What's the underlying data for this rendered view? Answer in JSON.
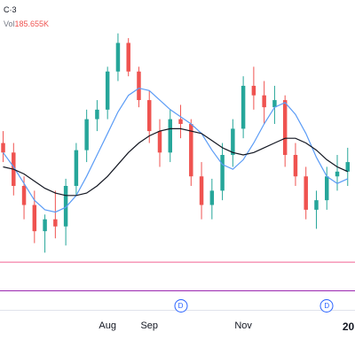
{
  "legend": {
    "symbol_line": "C·3",
    "volume_label": "Vol",
    "volume_value": "185.655K"
  },
  "colors": {
    "up": "#26a69a",
    "down": "#ef5350",
    "ma_fast": "#5b9cf6",
    "ma_slow": "#131722",
    "pink_line": "#f06292",
    "purple_line": "#9c27b0",
    "marker": "#2962ff"
  },
  "x_axis": {
    "ticks": [
      {
        "label": "Aug",
        "week": 10
      },
      {
        "label": "Sep",
        "week": 14
      },
      {
        "label": "Nov",
        "week": 23
      },
      {
        "label": "20",
        "week": 32.5,
        "bold": true
      }
    ]
  },
  "dividend_markers": [
    {
      "label": "D",
      "week": 17
    },
    {
      "label": "D",
      "week": 31
    }
  ],
  "chart_data": {
    "type": "candlestick",
    "x_unit": "week index",
    "y_unit": "price (no axis shown)",
    "xlim": [
      -0.3,
      33.7
    ],
    "ylim": [
      80,
      210
    ],
    "candles": [
      {
        "t": 0,
        "o": 150,
        "h": 155,
        "l": 142,
        "c": 146
      },
      {
        "t": 1,
        "o": 146,
        "h": 150,
        "l": 128,
        "c": 132
      },
      {
        "t": 2,
        "o": 132,
        "h": 136,
        "l": 118,
        "c": 124
      },
      {
        "t": 3,
        "o": 124,
        "h": 130,
        "l": 108,
        "c": 113
      },
      {
        "t": 4,
        "o": 113,
        "h": 120,
        "l": 104,
        "c": 118
      },
      {
        "t": 5,
        "o": 118,
        "h": 130,
        "l": 110,
        "c": 115
      },
      {
        "t": 6,
        "o": 115,
        "h": 135,
        "l": 107,
        "c": 132
      },
      {
        "t": 7,
        "o": 132,
        "h": 150,
        "l": 128,
        "c": 147
      },
      {
        "t": 8,
        "o": 147,
        "h": 164,
        "l": 142,
        "c": 160
      },
      {
        "t": 9,
        "o": 160,
        "h": 168,
        "l": 155,
        "c": 164
      },
      {
        "t": 10,
        "o": 164,
        "h": 182,
        "l": 160,
        "c": 180
      },
      {
        "t": 11,
        "o": 180,
        "h": 196,
        "l": 176,
        "c": 192
      },
      {
        "t": 12,
        "o": 192,
        "h": 194,
        "l": 178,
        "c": 180
      },
      {
        "t": 13,
        "o": 180,
        "h": 182,
        "l": 165,
        "c": 168
      },
      {
        "t": 14,
        "o": 168,
        "h": 172,
        "l": 150,
        "c": 155
      },
      {
        "t": 15,
        "o": 155,
        "h": 160,
        "l": 140,
        "c": 146
      },
      {
        "t": 16,
        "o": 146,
        "h": 164,
        "l": 142,
        "c": 160
      },
      {
        "t": 17,
        "o": 160,
        "h": 166,
        "l": 152,
        "c": 158
      },
      {
        "t": 18,
        "o": 158,
        "h": 160,
        "l": 132,
        "c": 136
      },
      {
        "t": 19,
        "o": 136,
        "h": 142,
        "l": 118,
        "c": 124
      },
      {
        "t": 20,
        "o": 124,
        "h": 135,
        "l": 118,
        "c": 130
      },
      {
        "t": 21,
        "o": 130,
        "h": 150,
        "l": 126,
        "c": 145
      },
      {
        "t": 22,
        "o": 145,
        "h": 160,
        "l": 140,
        "c": 156
      },
      {
        "t": 23,
        "o": 156,
        "h": 178,
        "l": 152,
        "c": 174
      },
      {
        "t": 24,
        "o": 174,
        "h": 182,
        "l": 164,
        "c": 170
      },
      {
        "t": 25,
        "o": 170,
        "h": 176,
        "l": 158,
        "c": 165
      },
      {
        "t": 26,
        "o": 165,
        "h": 174,
        "l": 158,
        "c": 168
      },
      {
        "t": 27,
        "o": 168,
        "h": 170,
        "l": 140,
        "c": 145
      },
      {
        "t": 28,
        "o": 145,
        "h": 150,
        "l": 132,
        "c": 136
      },
      {
        "t": 29,
        "o": 136,
        "h": 140,
        "l": 118,
        "c": 122
      },
      {
        "t": 30,
        "o": 122,
        "h": 130,
        "l": 114,
        "c": 126
      },
      {
        "t": 31,
        "o": 126,
        "h": 140,
        "l": 122,
        "c": 136
      },
      {
        "t": 32,
        "o": 136,
        "h": 145,
        "l": 130,
        "c": 138
      },
      {
        "t": 33,
        "o": 138,
        "h": 148,
        "l": 132,
        "c": 142
      }
    ],
    "series": [
      {
        "values": [
          146,
          140,
          133,
          126,
          122,
          121,
          123,
          128,
          136,
          145,
          154,
          163,
          170,
          173,
          172,
          168,
          164,
          161,
          158,
          154,
          147,
          141,
          139,
          143,
          150,
          158,
          165,
          167,
          162,
          154,
          144,
          136,
          133,
          135
        ]
      },
      {
        "values": [
          140,
          139,
          137,
          134,
          131,
          129,
          128,
          128,
          129,
          132,
          136,
          141,
          146,
          150,
          153,
          155,
          156,
          156,
          155,
          154,
          151,
          148,
          146,
          145,
          146,
          148,
          150,
          152,
          152,
          150,
          147,
          143,
          140,
          138
        ]
      }
    ],
    "horizontal_lines": [
      {
        "y": 100
      },
      {
        "y": 88
      }
    ]
  }
}
